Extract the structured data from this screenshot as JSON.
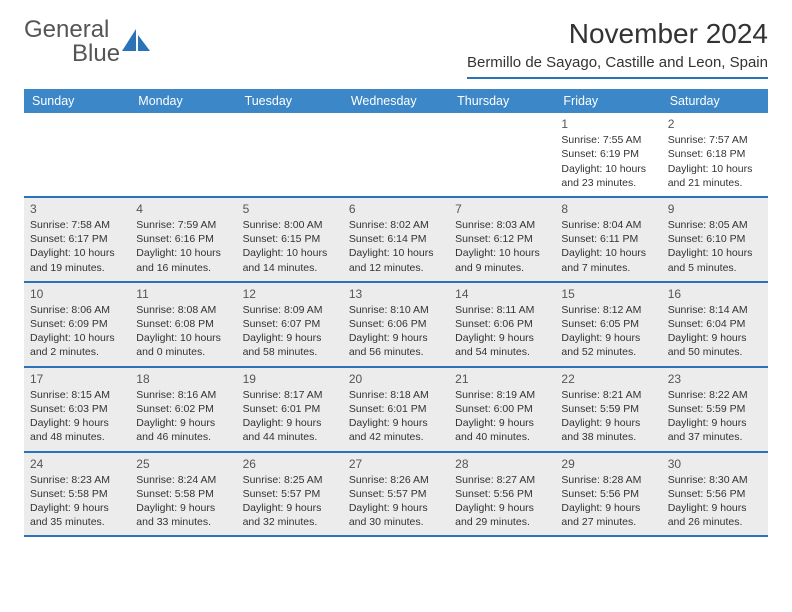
{
  "brand": {
    "word1": "General",
    "word2": "Blue"
  },
  "title": "November 2024",
  "location": "Bermillo de Sayago, Castille and Leon, Spain",
  "colors": {
    "header_bar": "#3b87c8",
    "rule": "#2a73b8",
    "shaded": "#ececec",
    "text": "#333333"
  },
  "weekdays": [
    "Sunday",
    "Monday",
    "Tuesday",
    "Wednesday",
    "Thursday",
    "Friday",
    "Saturday"
  ],
  "weeks": [
    [
      {
        "num": "",
        "sunrise": "",
        "sunset": "",
        "daylight": "",
        "shaded": false
      },
      {
        "num": "",
        "sunrise": "",
        "sunset": "",
        "daylight": "",
        "shaded": false
      },
      {
        "num": "",
        "sunrise": "",
        "sunset": "",
        "daylight": "",
        "shaded": false
      },
      {
        "num": "",
        "sunrise": "",
        "sunset": "",
        "daylight": "",
        "shaded": false
      },
      {
        "num": "",
        "sunrise": "",
        "sunset": "",
        "daylight": "",
        "shaded": false
      },
      {
        "num": "1",
        "sunrise": "Sunrise: 7:55 AM",
        "sunset": "Sunset: 6:19 PM",
        "daylight": "Daylight: 10 hours and 23 minutes.",
        "shaded": false
      },
      {
        "num": "2",
        "sunrise": "Sunrise: 7:57 AM",
        "sunset": "Sunset: 6:18 PM",
        "daylight": "Daylight: 10 hours and 21 minutes.",
        "shaded": false
      }
    ],
    [
      {
        "num": "3",
        "sunrise": "Sunrise: 7:58 AM",
        "sunset": "Sunset: 6:17 PM",
        "daylight": "Daylight: 10 hours and 19 minutes.",
        "shaded": true
      },
      {
        "num": "4",
        "sunrise": "Sunrise: 7:59 AM",
        "sunset": "Sunset: 6:16 PM",
        "daylight": "Daylight: 10 hours and 16 minutes.",
        "shaded": true
      },
      {
        "num": "5",
        "sunrise": "Sunrise: 8:00 AM",
        "sunset": "Sunset: 6:15 PM",
        "daylight": "Daylight: 10 hours and 14 minutes.",
        "shaded": true
      },
      {
        "num": "6",
        "sunrise": "Sunrise: 8:02 AM",
        "sunset": "Sunset: 6:14 PM",
        "daylight": "Daylight: 10 hours and 12 minutes.",
        "shaded": true
      },
      {
        "num": "7",
        "sunrise": "Sunrise: 8:03 AM",
        "sunset": "Sunset: 6:12 PM",
        "daylight": "Daylight: 10 hours and 9 minutes.",
        "shaded": true
      },
      {
        "num": "8",
        "sunrise": "Sunrise: 8:04 AM",
        "sunset": "Sunset: 6:11 PM",
        "daylight": "Daylight: 10 hours and 7 minutes.",
        "shaded": true
      },
      {
        "num": "9",
        "sunrise": "Sunrise: 8:05 AM",
        "sunset": "Sunset: 6:10 PM",
        "daylight": "Daylight: 10 hours and 5 minutes.",
        "shaded": true
      }
    ],
    [
      {
        "num": "10",
        "sunrise": "Sunrise: 8:06 AM",
        "sunset": "Sunset: 6:09 PM",
        "daylight": "Daylight: 10 hours and 2 minutes.",
        "shaded": true
      },
      {
        "num": "11",
        "sunrise": "Sunrise: 8:08 AM",
        "sunset": "Sunset: 6:08 PM",
        "daylight": "Daylight: 10 hours and 0 minutes.",
        "shaded": true
      },
      {
        "num": "12",
        "sunrise": "Sunrise: 8:09 AM",
        "sunset": "Sunset: 6:07 PM",
        "daylight": "Daylight: 9 hours and 58 minutes.",
        "shaded": true
      },
      {
        "num": "13",
        "sunrise": "Sunrise: 8:10 AM",
        "sunset": "Sunset: 6:06 PM",
        "daylight": "Daylight: 9 hours and 56 minutes.",
        "shaded": true
      },
      {
        "num": "14",
        "sunrise": "Sunrise: 8:11 AM",
        "sunset": "Sunset: 6:06 PM",
        "daylight": "Daylight: 9 hours and 54 minutes.",
        "shaded": true
      },
      {
        "num": "15",
        "sunrise": "Sunrise: 8:12 AM",
        "sunset": "Sunset: 6:05 PM",
        "daylight": "Daylight: 9 hours and 52 minutes.",
        "shaded": true
      },
      {
        "num": "16",
        "sunrise": "Sunrise: 8:14 AM",
        "sunset": "Sunset: 6:04 PM",
        "daylight": "Daylight: 9 hours and 50 minutes.",
        "shaded": true
      }
    ],
    [
      {
        "num": "17",
        "sunrise": "Sunrise: 8:15 AM",
        "sunset": "Sunset: 6:03 PM",
        "daylight": "Daylight: 9 hours and 48 minutes.",
        "shaded": true
      },
      {
        "num": "18",
        "sunrise": "Sunrise: 8:16 AM",
        "sunset": "Sunset: 6:02 PM",
        "daylight": "Daylight: 9 hours and 46 minutes.",
        "shaded": true
      },
      {
        "num": "19",
        "sunrise": "Sunrise: 8:17 AM",
        "sunset": "Sunset: 6:01 PM",
        "daylight": "Daylight: 9 hours and 44 minutes.",
        "shaded": true
      },
      {
        "num": "20",
        "sunrise": "Sunrise: 8:18 AM",
        "sunset": "Sunset: 6:01 PM",
        "daylight": "Daylight: 9 hours and 42 minutes.",
        "shaded": true
      },
      {
        "num": "21",
        "sunrise": "Sunrise: 8:19 AM",
        "sunset": "Sunset: 6:00 PM",
        "daylight": "Daylight: 9 hours and 40 minutes.",
        "shaded": true
      },
      {
        "num": "22",
        "sunrise": "Sunrise: 8:21 AM",
        "sunset": "Sunset: 5:59 PM",
        "daylight": "Daylight: 9 hours and 38 minutes.",
        "shaded": true
      },
      {
        "num": "23",
        "sunrise": "Sunrise: 8:22 AM",
        "sunset": "Sunset: 5:59 PM",
        "daylight": "Daylight: 9 hours and 37 minutes.",
        "shaded": true
      }
    ],
    [
      {
        "num": "24",
        "sunrise": "Sunrise: 8:23 AM",
        "sunset": "Sunset: 5:58 PM",
        "daylight": "Daylight: 9 hours and 35 minutes.",
        "shaded": true
      },
      {
        "num": "25",
        "sunrise": "Sunrise: 8:24 AM",
        "sunset": "Sunset: 5:58 PM",
        "daylight": "Daylight: 9 hours and 33 minutes.",
        "shaded": true
      },
      {
        "num": "26",
        "sunrise": "Sunrise: 8:25 AM",
        "sunset": "Sunset: 5:57 PM",
        "daylight": "Daylight: 9 hours and 32 minutes.",
        "shaded": true
      },
      {
        "num": "27",
        "sunrise": "Sunrise: 8:26 AM",
        "sunset": "Sunset: 5:57 PM",
        "daylight": "Daylight: 9 hours and 30 minutes.",
        "shaded": true
      },
      {
        "num": "28",
        "sunrise": "Sunrise: 8:27 AM",
        "sunset": "Sunset: 5:56 PM",
        "daylight": "Daylight: 9 hours and 29 minutes.",
        "shaded": true
      },
      {
        "num": "29",
        "sunrise": "Sunrise: 8:28 AM",
        "sunset": "Sunset: 5:56 PM",
        "daylight": "Daylight: 9 hours and 27 minutes.",
        "shaded": true
      },
      {
        "num": "30",
        "sunrise": "Sunrise: 8:30 AM",
        "sunset": "Sunset: 5:56 PM",
        "daylight": "Daylight: 9 hours and 26 minutes.",
        "shaded": true
      }
    ]
  ]
}
